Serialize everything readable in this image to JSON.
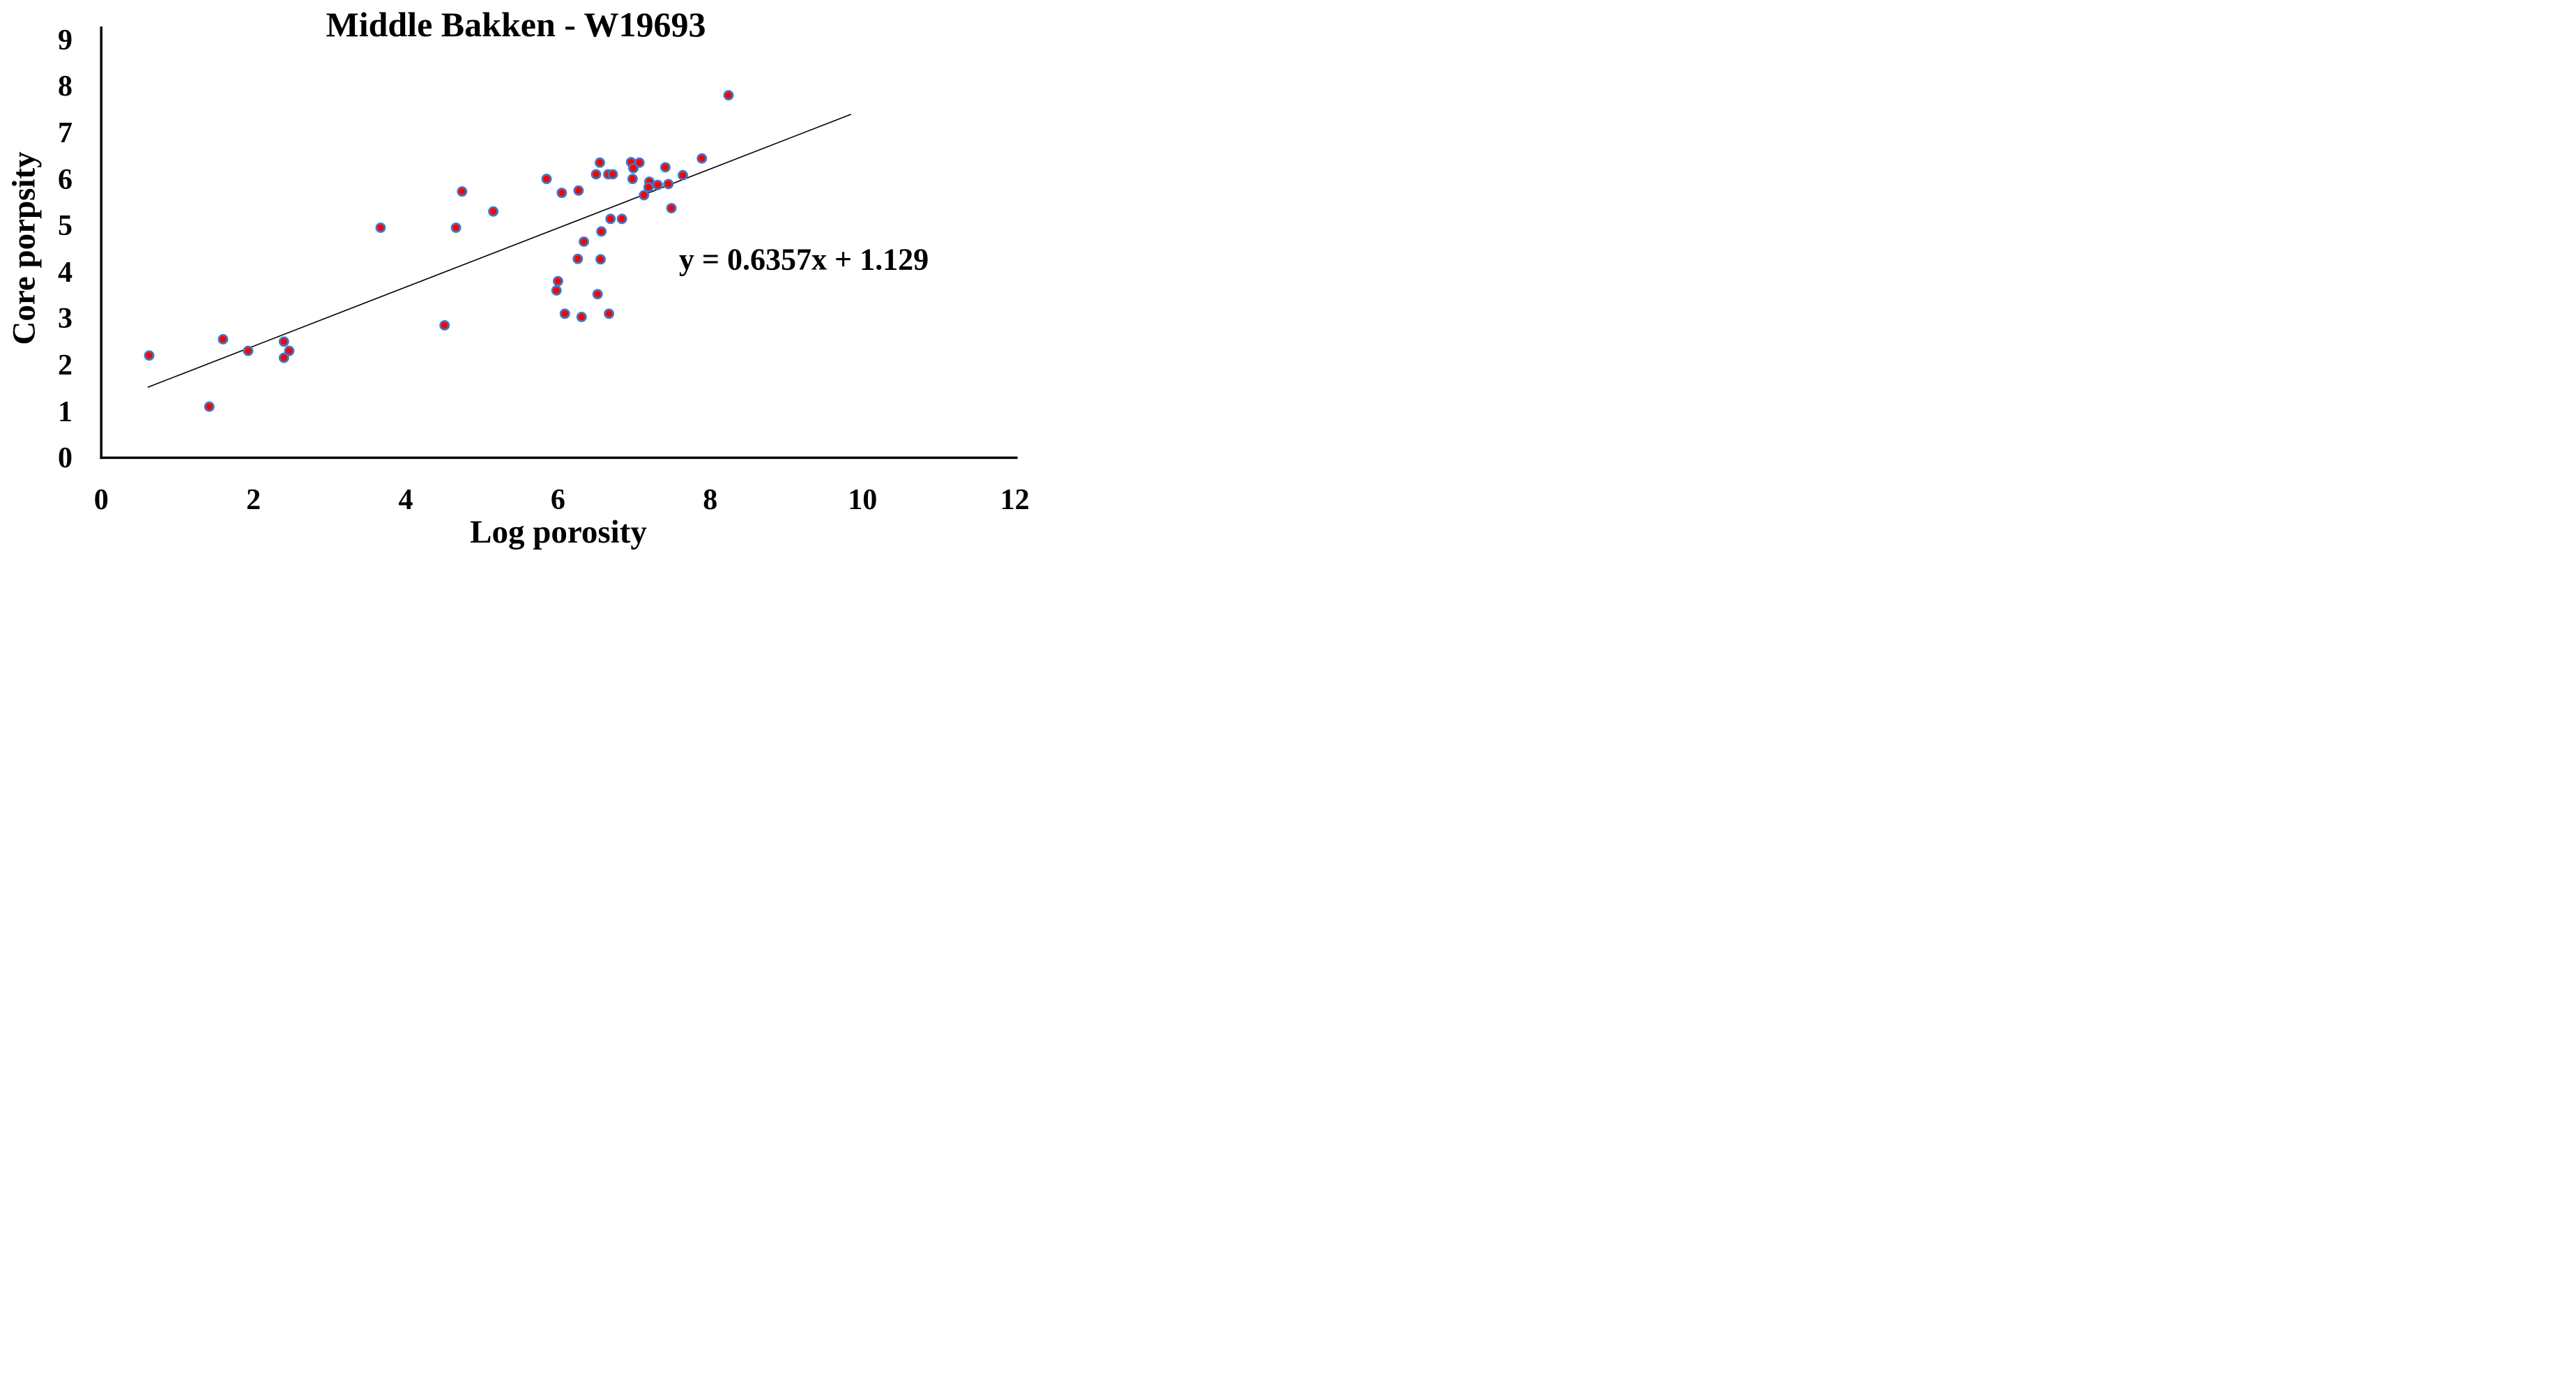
{
  "page": {
    "background": "#ffffff"
  },
  "chart_data": {
    "type": "scatter",
    "title": "Middle Bakken - W19693",
    "xlabel": "Log porosity",
    "ylabel": "Core porpsity",
    "xlim": [
      0,
      12
    ],
    "ylim": [
      0,
      9
    ],
    "xticks": [
      0,
      2,
      4,
      6,
      8,
      10,
      12
    ],
    "yticks": [
      0,
      1,
      2,
      3,
      4,
      5,
      6,
      7,
      8,
      9
    ],
    "grid": false,
    "legend": "none",
    "axis_color": "#000000",
    "marker": {
      "fill": "#ff0000",
      "stroke": "#3b7ac8"
    },
    "points": [
      [
        0.63,
        2.2
      ],
      [
        1.42,
        1.1
      ],
      [
        1.6,
        2.55
      ],
      [
        1.93,
        2.3
      ],
      [
        2.4,
        2.5
      ],
      [
        2.47,
        2.3
      ],
      [
        2.4,
        2.15
      ],
      [
        3.67,
        4.95
      ],
      [
        4.51,
        2.85
      ],
      [
        4.66,
        4.95
      ],
      [
        4.74,
        5.73
      ],
      [
        5.15,
        5.3
      ],
      [
        5.85,
        6.0
      ],
      [
        6.05,
        5.7
      ],
      [
        6.27,
        5.75
      ],
      [
        6.5,
        6.1
      ],
      [
        6.55,
        6.35
      ],
      [
        6.66,
        6.1
      ],
      [
        6.72,
        6.1
      ],
      [
        6.96,
        6.36
      ],
      [
        7.07,
        6.35
      ],
      [
        6.99,
        6.23
      ],
      [
        6.98,
        6.0
      ],
      [
        7.2,
        5.94
      ],
      [
        7.19,
        5.82
      ],
      [
        7.31,
        5.87
      ],
      [
        7.45,
        5.89
      ],
      [
        7.41,
        6.25
      ],
      [
        7.64,
        6.08
      ],
      [
        7.89,
        6.44
      ],
      [
        7.49,
        5.37
      ],
      [
        7.13,
        5.65
      ],
      [
        6.69,
        5.14
      ],
      [
        6.84,
        5.14
      ],
      [
        6.57,
        4.87
      ],
      [
        6.34,
        4.65
      ],
      [
        6.26,
        4.28
      ],
      [
        6.56,
        4.27
      ],
      [
        6.0,
        3.8
      ],
      [
        5.98,
        3.6
      ],
      [
        6.52,
        3.52
      ],
      [
        6.09,
        3.1
      ],
      [
        6.31,
        3.03
      ],
      [
        6.67,
        3.1
      ],
      [
        8.24,
        7.8
      ]
    ],
    "trendline": {
      "slope": 0.6357,
      "intercept": 1.129,
      "x_start": 0.61,
      "x_end": 9.85,
      "equation_label": "y = 0.6357x + 1.129",
      "color": "#000000"
    }
  }
}
